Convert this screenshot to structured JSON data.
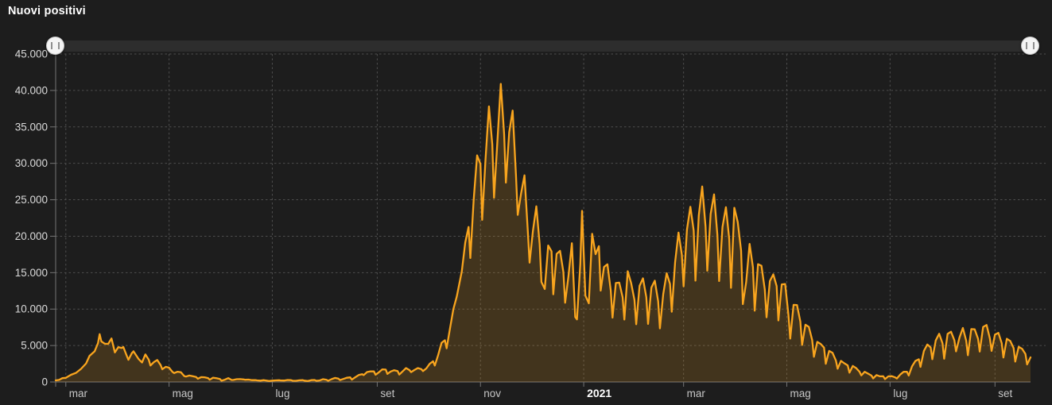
{
  "title": "Nuovi positivi",
  "colors": {
    "background": "#1d1d1d",
    "line": "#f9a51e",
    "area_fill": "rgba(249,165,30,0.17)",
    "grid": "#4e4e4e",
    "axis": "#757575",
    "y_label": "#d9d9d9",
    "x_label": "#c6c6c6",
    "x_label_emphasis": "#ffffff",
    "slider_track": "#2d2d2d",
    "slider_handle": "#f4f4f4"
  },
  "slider": {
    "type": "time-range",
    "range_start_pct": 0,
    "range_end_pct": 100
  },
  "chart_data": {
    "type": "area",
    "title": "Nuovi positivi",
    "series_name": "Nuovi positivi",
    "grid": "dotted",
    "legend": "none",
    "ylim": [
      0,
      45000
    ],
    "x_unit": "giorni, day 0 = 24 feb 2020",
    "x_domain_days": [
      0,
      576
    ],
    "y_ticks": [
      {
        "v": 0,
        "label": "0"
      },
      {
        "v": 5000,
        "label": "5.000"
      },
      {
        "v": 10000,
        "label": "10.000"
      },
      {
        "v": 15000,
        "label": "15.000"
      },
      {
        "v": 20000,
        "label": "20.000"
      },
      {
        "v": 25000,
        "label": "25.000"
      },
      {
        "v": 30000,
        "label": "30.000"
      },
      {
        "v": 35000,
        "label": "35.000"
      },
      {
        "v": 40000,
        "label": "40.000"
      },
      {
        "v": 45000,
        "label": "45.000"
      }
    ],
    "x_ticks": [
      {
        "day": 6,
        "label": "mar",
        "emphasis": false
      },
      {
        "day": 67,
        "label": "mag",
        "emphasis": false
      },
      {
        "day": 128,
        "label": "lug",
        "emphasis": false
      },
      {
        "day": 190,
        "label": "set",
        "emphasis": false
      },
      {
        "day": 251,
        "label": "nov",
        "emphasis": false
      },
      {
        "day": 312,
        "label": "2021",
        "emphasis": true
      },
      {
        "day": 371,
        "label": "mar",
        "emphasis": false
      },
      {
        "day": 432,
        "label": "mag",
        "emphasis": false
      },
      {
        "day": 493,
        "label": "lug",
        "emphasis": false
      },
      {
        "day": 555,
        "label": "set",
        "emphasis": false
      }
    ],
    "points": [
      [
        0,
        221
      ],
      [
        2,
        283
      ],
      [
        4,
        528
      ],
      [
        6,
        566
      ],
      [
        9,
        977
      ],
      [
        12,
        1247
      ],
      [
        15,
        1797
      ],
      [
        18,
        2547
      ],
      [
        20,
        3590
      ],
      [
        23,
        4207
      ],
      [
        25,
        5322
      ],
      [
        26,
        6557
      ],
      [
        27,
        5560
      ],
      [
        29,
        5249
      ],
      [
        31,
        5217
      ],
      [
        33,
        5974
      ],
      [
        35,
        4050
      ],
      [
        37,
        4782
      ],
      [
        39,
        4668
      ],
      [
        40,
        4805
      ],
      [
        42,
        3599
      ],
      [
        43,
        3039
      ],
      [
        45,
        3951
      ],
      [
        46,
        4204
      ],
      [
        48,
        3503
      ],
      [
        49,
        3153
      ],
      [
        51,
        2667
      ],
      [
        53,
        3786
      ],
      [
        55,
        3047
      ],
      [
        56,
        2256
      ],
      [
        58,
        2729
      ],
      [
        60,
        3021
      ],
      [
        62,
        2324
      ],
      [
        63,
        1739
      ],
      [
        65,
        2086
      ],
      [
        67,
        1965
      ],
      [
        69,
        1389
      ],
      [
        70,
        1221
      ],
      [
        72,
        1401
      ],
      [
        74,
        1327
      ],
      [
        76,
        802
      ],
      [
        77,
        744
      ],
      [
        79,
        888
      ],
      [
        81,
        789
      ],
      [
        83,
        675
      ],
      [
        84,
        451
      ],
      [
        86,
        665
      ],
      [
        88,
        642
      ],
      [
        90,
        531
      ],
      [
        91,
        300
      ],
      [
        93,
        584
      ],
      [
        95,
        516
      ],
      [
        97,
        416
      ],
      [
        98,
        178
      ],
      [
        100,
        321
      ],
      [
        102,
        518
      ],
      [
        104,
        270
      ],
      [
        105,
        280
      ],
      [
        107,
        379
      ],
      [
        109,
        393
      ],
      [
        111,
        346
      ],
      [
        112,
        301
      ],
      [
        114,
        329
      ],
      [
        116,
        251
      ],
      [
        118,
        264
      ],
      [
        119,
        218
      ],
      [
        121,
        190
      ],
      [
        123,
        255
      ],
      [
        125,
        174
      ],
      [
        126,
        126
      ],
      [
        128,
        182
      ],
      [
        130,
        223
      ],
      [
        132,
        235
      ],
      [
        133,
        208
      ],
      [
        135,
        193
      ],
      [
        137,
        276
      ],
      [
        139,
        249
      ],
      [
        140,
        169
      ],
      [
        142,
        163
      ],
      [
        144,
        233
      ],
      [
        146,
        252
      ],
      [
        147,
        190
      ],
      [
        149,
        129
      ],
      [
        151,
        252
      ],
      [
        153,
        275
      ],
      [
        154,
        168
      ],
      [
        156,
        212
      ],
      [
        158,
        379
      ],
      [
        160,
        295
      ],
      [
        161,
        159
      ],
      [
        163,
        384
      ],
      [
        165,
        552
      ],
      [
        167,
        463
      ],
      [
        168,
        259
      ],
      [
        170,
        412
      ],
      [
        172,
        574
      ],
      [
        174,
        629
      ],
      [
        175,
        320
      ],
      [
        177,
        642
      ],
      [
        179,
        947
      ],
      [
        181,
        1071
      ],
      [
        182,
        953
      ],
      [
        184,
        1367
      ],
      [
        186,
        1462
      ],
      [
        188,
        1444
      ],
      [
        189,
        996
      ],
      [
        191,
        1326
      ],
      [
        193,
        1733
      ],
      [
        195,
        1695
      ],
      [
        196,
        1108
      ],
      [
        198,
        1434
      ],
      [
        200,
        1616
      ],
      [
        202,
        1501
      ],
      [
        203,
        1008
      ],
      [
        205,
        1452
      ],
      [
        207,
        1907
      ],
      [
        209,
        1638
      ],
      [
        210,
        1350
      ],
      [
        212,
        1640
      ],
      [
        214,
        1912
      ],
      [
        216,
        1766
      ],
      [
        217,
        1494
      ],
      [
        219,
        1851
      ],
      [
        221,
        2499
      ],
      [
        223,
        2844
      ],
      [
        224,
        2257
      ],
      [
        226,
        3678
      ],
      [
        228,
        5372
      ],
      [
        230,
        5724
      ],
      [
        231,
        4619
      ],
      [
        233,
        7332
      ],
      [
        235,
        10010
      ],
      [
        237,
        11705
      ],
      [
        240,
        15199
      ],
      [
        242,
        19143
      ],
      [
        244,
        21273
      ],
      [
        245,
        17012
      ],
      [
        247,
        24991
      ],
      [
        249,
        31084
      ],
      [
        251,
        29907
      ],
      [
        252,
        22253
      ],
      [
        254,
        30550
      ],
      [
        256,
        37809
      ],
      [
        258,
        32616
      ],
      [
        259,
        25271
      ],
      [
        261,
        32961
      ],
      [
        263,
        40902
      ],
      [
        265,
        33979
      ],
      [
        266,
        27354
      ],
      [
        268,
        34283
      ],
      [
        270,
        37242
      ],
      [
        272,
        28337
      ],
      [
        273,
        22930
      ],
      [
        275,
        25853
      ],
      [
        277,
        28352
      ],
      [
        279,
        20648
      ],
      [
        280,
        16377
      ],
      [
        282,
        20709
      ],
      [
        284,
        24099
      ],
      [
        286,
        18887
      ],
      [
        287,
        13720
      ],
      [
        289,
        12756
      ],
      [
        291,
        18727
      ],
      [
        293,
        17938
      ],
      [
        294,
        12030
      ],
      [
        296,
        17572
      ],
      [
        298,
        17992
      ],
      [
        300,
        15104
      ],
      [
        301,
        10872
      ],
      [
        303,
        14522
      ],
      [
        305,
        19037
      ],
      [
        307,
        8913
      ],
      [
        308,
        8585
      ],
      [
        310,
        16202
      ],
      [
        311,
        23477
      ],
      [
        313,
        11831
      ],
      [
        315,
        10800
      ],
      [
        317,
        20331
      ],
      [
        319,
        17533
      ],
      [
        321,
        18627
      ],
      [
        322,
        12532
      ],
      [
        324,
        15774
      ],
      [
        326,
        16146
      ],
      [
        328,
        12545
      ],
      [
        329,
        8824
      ],
      [
        331,
        13571
      ],
      [
        333,
        13633
      ],
      [
        335,
        11629
      ],
      [
        336,
        8561
      ],
      [
        338,
        15204
      ],
      [
        340,
        13574
      ],
      [
        342,
        11252
      ],
      [
        343,
        7925
      ],
      [
        345,
        13189
      ],
      [
        347,
        14218
      ],
      [
        349,
        11641
      ],
      [
        350,
        7970
      ],
      [
        352,
        12956
      ],
      [
        354,
        13908
      ],
      [
        356,
        11068
      ],
      [
        357,
        7351
      ],
      [
        359,
        12074
      ],
      [
        361,
        14931
      ],
      [
        363,
        13452
      ],
      [
        364,
        9630
      ],
      [
        366,
        16424
      ],
      [
        368,
        20499
      ],
      [
        370,
        17455
      ],
      [
        371,
        13114
      ],
      [
        373,
        20884
      ],
      [
        375,
        24036
      ],
      [
        377,
        20765
      ],
      [
        378,
        13902
      ],
      [
        380,
        22865
      ],
      [
        382,
        26824
      ],
      [
        384,
        21315
      ],
      [
        385,
        15267
      ],
      [
        387,
        23059
      ],
      [
        389,
        25735
      ],
      [
        391,
        20159
      ],
      [
        392,
        13846
      ],
      [
        394,
        21267
      ],
      [
        396,
        23987
      ],
      [
        398,
        19611
      ],
      [
        399,
        12916
      ],
      [
        401,
        23904
      ],
      [
        403,
        21932
      ],
      [
        405,
        18025
      ],
      [
        406,
        10680
      ],
      [
        408,
        13708
      ],
      [
        410,
        18938
      ],
      [
        412,
        15746
      ],
      [
        413,
        9789
      ],
      [
        415,
        16168
      ],
      [
        417,
        15943
      ],
      [
        419,
        12694
      ],
      [
        420,
        8864
      ],
      [
        422,
        13844
      ],
      [
        424,
        14761
      ],
      [
        426,
        13158
      ],
      [
        427,
        8444
      ],
      [
        429,
        13385
      ],
      [
        431,
        13446
      ],
      [
        433,
        9148
      ],
      [
        434,
        5948
      ],
      [
        436,
        10585
      ],
      [
        438,
        10554
      ],
      [
        440,
        8292
      ],
      [
        441,
        5080
      ],
      [
        443,
        7852
      ],
      [
        445,
        7567
      ],
      [
        447,
        5753
      ],
      [
        448,
        3455
      ],
      [
        450,
        5506
      ],
      [
        452,
        5218
      ],
      [
        454,
        4717
      ],
      [
        455,
        2490
      ],
      [
        457,
        4255
      ],
      [
        459,
        3995
      ],
      [
        461,
        2949
      ],
      [
        462,
        1820
      ],
      [
        464,
        2897
      ],
      [
        466,
        2557
      ],
      [
        468,
        2275
      ],
      [
        469,
        1273
      ],
      [
        471,
        2199
      ],
      [
        473,
        1901
      ],
      [
        475,
        1390
      ],
      [
        476,
        907
      ],
      [
        478,
        1400
      ],
      [
        480,
        1147
      ],
      [
        482,
        881
      ],
      [
        483,
        495
      ],
      [
        485,
        951
      ],
      [
        487,
        776
      ],
      [
        489,
        782
      ],
      [
        490,
        389
      ],
      [
        492,
        776
      ],
      [
        494,
        794
      ],
      [
        496,
        636
      ],
      [
        497,
        480
      ],
      [
        499,
        1010
      ],
      [
        501,
        1390
      ],
      [
        503,
        1391
      ],
      [
        504,
        888
      ],
      [
        506,
        2153
      ],
      [
        508,
        2898
      ],
      [
        510,
        3117
      ],
      [
        511,
        2072
      ],
      [
        513,
        4259
      ],
      [
        515,
        5143
      ],
      [
        517,
        4743
      ],
      [
        518,
        3117
      ],
      [
        520,
        5696
      ],
      [
        522,
        6619
      ],
      [
        524,
        5321
      ],
      [
        525,
        3190
      ],
      [
        527,
        6596
      ],
      [
        529,
        6902
      ],
      [
        531,
        5736
      ],
      [
        532,
        4200
      ],
      [
        534,
        6068
      ],
      [
        536,
        7409
      ],
      [
        538,
        5664
      ],
      [
        539,
        3674
      ],
      [
        541,
        7260
      ],
      [
        543,
        7224
      ],
      [
        545,
        5923
      ],
      [
        546,
        4168
      ],
      [
        548,
        7548
      ],
      [
        550,
        7826
      ],
      [
        552,
        5959
      ],
      [
        553,
        4257
      ],
      [
        555,
        6503
      ],
      [
        557,
        6735
      ],
      [
        559,
        5315
      ],
      [
        560,
        3361
      ],
      [
        562,
        5923
      ],
      [
        564,
        5621
      ],
      [
        566,
        4664
      ],
      [
        567,
        2800
      ],
      [
        569,
        4830
      ],
      [
        571,
        4552
      ],
      [
        573,
        3838
      ],
      [
        574,
        2407
      ],
      [
        576,
        3377
      ]
    ]
  }
}
